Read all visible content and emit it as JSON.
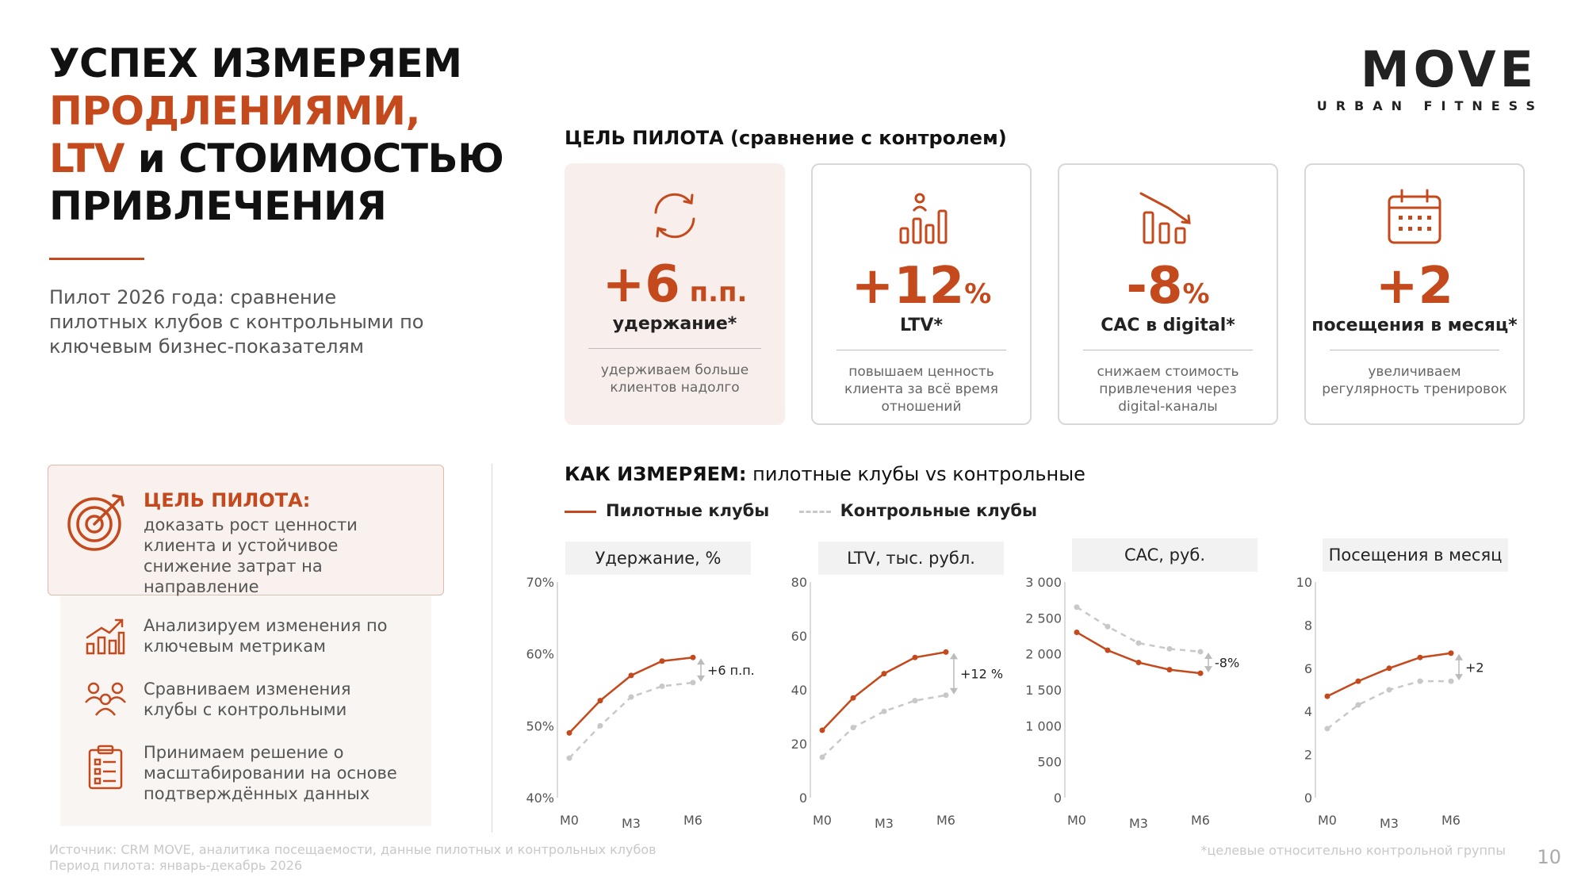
{
  "title": {
    "line1": "УСПЕХ ИЗМЕРЯЕМ",
    "line2": "ПРОДЛЕНИЯМИ,",
    "line3_accent": "LTV",
    "line3_rest": " и СТОИМОСТЬЮ",
    "line4": "ПРИВЛЕЧЕНИЯ"
  },
  "intro": "Пилот 2026 года: сравнение пилотных клубов с контрольными по ключевым бизнес-показателям",
  "logo": {
    "main": "MOVE",
    "sub": "URBAN FITNESS"
  },
  "goals_section": {
    "title": "ЦЕЛЬ ПИЛОТА (сравнение с контролем)"
  },
  "cards": [
    {
      "icon": "refresh-icon",
      "value": "+6",
      "unit": " п.п.",
      "label": "удержание*",
      "desc": "удерживаем больше клиентов надолго"
    },
    {
      "icon": "bar-growth-icon",
      "value": "+12",
      "unit": "%",
      "label": "LTV*",
      "desc": "повышаем ценность клиента за всё время отношений"
    },
    {
      "icon": "bar-decline-icon",
      "value": "-8",
      "unit": "%",
      "label": "CAC в digital*",
      "desc": "снижаем стоимость привлечения через digital-каналы"
    },
    {
      "icon": "calendar-icon",
      "value": "+2",
      "unit": "",
      "label": "посещения в месяц*",
      "desc": "увеличиваем регулярность тренировок"
    }
  ],
  "goal_box": {
    "title": "ЦЕЛЬ ПИЛОТА:",
    "desc": "доказать рост ценности клиента и устойчивое снижение затрат на направление"
  },
  "steps": [
    {
      "icon": "analytics-icon",
      "text": "Анализируем изменения по ключевым метрикам"
    },
    {
      "icon": "people-icon",
      "text": "Сравниваем изменения клубы с контрольными"
    },
    {
      "icon": "checklist-icon",
      "text": "Принимаем решение о масштабировании на основе подтверждённых данных"
    }
  ],
  "measure": {
    "title_bold": "КАК ИЗМЕРЯЕМ:",
    "title_rest": " пилотные клубы vs контрольные"
  },
  "legend": {
    "pilot": "Пилотные клубы",
    "control": "Контрольные клубы"
  },
  "colors": {
    "accent": "#c4491c",
    "control": "#c8c8c8"
  },
  "chart_data": [
    {
      "type": "line",
      "title": "Удержание, %",
      "x": [
        "M0",
        "",
        "M3",
        "",
        "M6"
      ],
      "x_labels": [
        "M0",
        "M3",
        "M6"
      ],
      "yticks": [
        "70%",
        "60%",
        "50%",
        "40%"
      ],
      "ylim": [
        40,
        70
      ],
      "series": [
        {
          "name": "Пилотные клубы",
          "values": [
            49,
            53.5,
            57,
            59,
            59.5
          ]
        },
        {
          "name": "Контрольные клубы",
          "values": [
            45.5,
            50,
            54,
            55.5,
            56
          ]
        }
      ],
      "annotation": "+6 п.п."
    },
    {
      "type": "line",
      "title": "LTV, тыс. рубл.",
      "x": [
        "M0",
        "",
        "M3",
        "",
        "M6"
      ],
      "x_labels": [
        "M0",
        "M3",
        "M6"
      ],
      "yticks": [
        "80",
        "60",
        "40",
        "20",
        "0"
      ],
      "ylim": [
        0,
        80
      ],
      "series": [
        {
          "name": "Пилотные клубы",
          "values": [
            25,
            37,
            46,
            52,
            54
          ]
        },
        {
          "name": "Контрольные клубы",
          "values": [
            15,
            26,
            32,
            36,
            38
          ]
        }
      ],
      "annotation": "+12 %"
    },
    {
      "type": "line",
      "title": "CAC, руб.",
      "x": [
        "M0",
        "",
        "M3",
        "",
        "M6"
      ],
      "x_labels": [
        "M0",
        "M3",
        "M6"
      ],
      "yticks": [
        "3 000",
        "2 500",
        "2 000",
        "1 500",
        "1 000",
        "500",
        "0"
      ],
      "ylim": [
        0,
        3000
      ],
      "series": [
        {
          "name": "Пилотные клубы",
          "values": [
            2300,
            2050,
            1880,
            1780,
            1730
          ]
        },
        {
          "name": "Контрольные клубы",
          "values": [
            2650,
            2380,
            2150,
            2070,
            2030
          ]
        }
      ],
      "annotation": "-8%"
    },
    {
      "type": "line",
      "title": "Посещения в месяц",
      "x": [
        "M0",
        "",
        "M3",
        "",
        "M6"
      ],
      "x_labels": [
        "M0",
        "M3",
        "M6"
      ],
      "yticks": [
        "10",
        "8",
        "6",
        "4",
        "2",
        "0"
      ],
      "ylim": [
        0,
        10
      ],
      "series": [
        {
          "name": "Пилотные клубы",
          "values": [
            4.7,
            5.4,
            6.0,
            6.5,
            6.7
          ]
        },
        {
          "name": "Контрольные клубы",
          "values": [
            3.2,
            4.3,
            5.0,
            5.4,
            5.4
          ]
        }
      ],
      "annotation": "+2"
    }
  ],
  "footer": {
    "source": "Источник: CRM MOVE, аналитика посещаемости, данные пилотных и контрольных клубов",
    "period": "Период пилота: январь-декабрь 2026",
    "note": "*целевые относительно контрольной группы",
    "page": "10"
  }
}
